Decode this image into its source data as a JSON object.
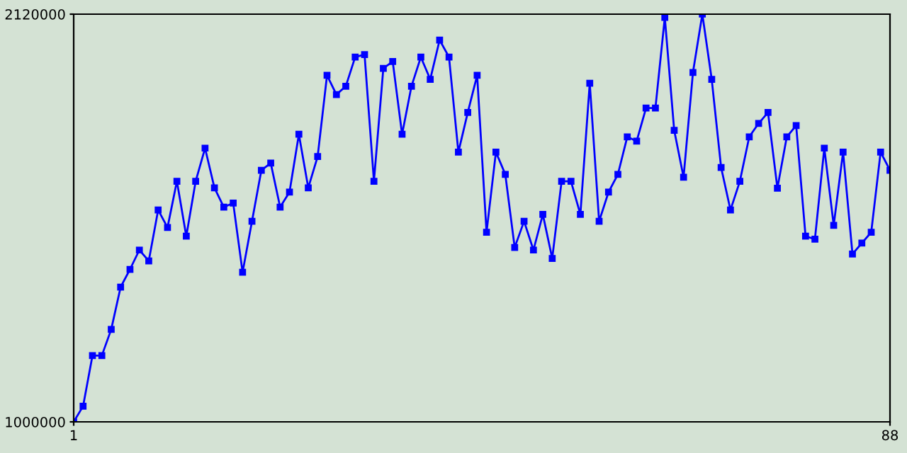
{
  "chart_data": {
    "type": "line",
    "x": [
      1,
      2,
      3,
      4,
      5,
      6,
      7,
      8,
      9,
      10,
      11,
      12,
      13,
      14,
      15,
      16,
      17,
      18,
      19,
      20,
      21,
      22,
      23,
      24,
      25,
      26,
      27,
      28,
      29,
      30,
      31,
      32,
      33,
      34,
      35,
      36,
      37,
      38,
      39,
      40,
      41,
      42,
      43,
      44,
      45,
      46,
      47,
      48,
      49,
      50,
      51,
      52,
      53,
      54,
      55,
      56,
      57,
      58,
      59,
      60,
      61,
      62,
      63,
      64,
      65,
      66,
      67,
      68,
      69,
      70,
      71,
      72,
      73,
      74,
      75,
      76,
      77,
      78,
      79,
      80,
      81,
      82,
      83,
      84,
      85,
      86,
      87,
      88
    ],
    "series": [
      {
        "color": "#0000ff",
        "values": [
          1000000,
          1043000,
          1182000,
          1182000,
          1254000,
          1370000,
          1419000,
          1472000,
          1442000,
          1582000,
          1534000,
          1661000,
          1510000,
          1661000,
          1752000,
          1643000,
          1590000,
          1601000,
          1411000,
          1551000,
          1691000,
          1711000,
          1590000,
          1631000,
          1790000,
          1643000,
          1729000,
          1952000,
          1899000,
          1922000,
          2002000,
          2009000,
          1661000,
          1971000,
          1990000,
          1790000,
          1922000,
          2002000,
          1941000,
          2049000,
          2002000,
          1741000,
          1850000,
          1952000,
          1521000,
          1741000,
          1680000,
          1479000,
          1551000,
          1472000,
          1570000,
          1449000,
          1661000,
          1661000,
          1570000,
          1930000,
          1551000,
          1631000,
          1680000,
          1783000,
          1771000,
          1862000,
          1862000,
          2111000,
          1801000,
          1672000,
          1960000,
          2120000,
          1941000,
          1699000,
          1582000,
          1661000,
          1783000,
          1820000,
          1850000,
          1642000,
          1783000,
          1814000,
          1510000,
          1502000,
          1752000,
          1540000,
          1741000,
          1461000,
          1491000,
          1521000,
          1741000,
          1691000
        ]
      }
    ],
    "xlim": [
      1,
      88
    ],
    "xticks": [
      1,
      88
    ],
    "ylim": [
      1000000,
      2120000
    ],
    "yticks": [
      1000000,
      2120000
    ],
    "marker": "square",
    "line_style": "solid",
    "grid": false,
    "legend": false
  }
}
